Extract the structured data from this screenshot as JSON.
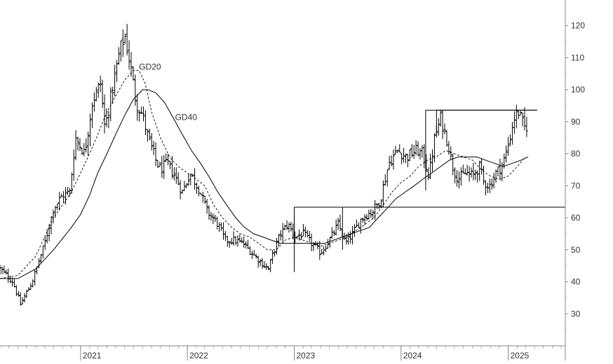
{
  "chart_data": {
    "type": "ohlc",
    "title": "",
    "xlabel": "",
    "ylabel": "",
    "ylim": [
      20,
      128
    ],
    "yticks": [
      30,
      40,
      50,
      60,
      70,
      80,
      90,
      100,
      110,
      120
    ],
    "xlim": [
      "2020-04-01",
      "2025-07-15"
    ],
    "xticks": [
      {
        "date": "2021-01-01",
        "label": "2021"
      },
      {
        "date": "2022-01-01",
        "label": "2022"
      },
      {
        "date": "2023-01-01",
        "label": "2023"
      },
      {
        "date": "2024-01-01",
        "label": "2024"
      },
      {
        "date": "2025-01-01",
        "label": "2025"
      }
    ],
    "grid": false,
    "y_axis_side": "right",
    "colors": {
      "bars": "#000000",
      "axis": "#888888",
      "text": "#333333"
    },
    "series_labels": [
      {
        "text": "GD20",
        "date": "2021-07-20",
        "value": 106.2
      },
      {
        "text": "GD40",
        "date": "2021-11-20",
        "value": 90.5
      }
    ],
    "price_path": [
      [
        "2020-04-01",
        44
      ],
      [
        "2020-05-15",
        40
      ],
      [
        "2020-06-10",
        33
      ],
      [
        "2020-07-20",
        40
      ],
      [
        "2020-09-01",
        52
      ],
      [
        "2020-10-01",
        63
      ],
      [
        "2020-11-01",
        67
      ],
      [
        "2020-11-25",
        68
      ],
      [
        "2020-12-15",
        85
      ],
      [
        "2021-01-15",
        80
      ],
      [
        "2021-02-10",
        96
      ],
      [
        "2021-03-10",
        102
      ],
      [
        "2021-03-25",
        88
      ],
      [
        "2021-04-20",
        100
      ],
      [
        "2021-05-15",
        112
      ],
      [
        "2021-06-01",
        117
      ],
      [
        "2021-06-20",
        108
      ],
      [
        "2021-07-10",
        96
      ],
      [
        "2021-08-01",
        92
      ],
      [
        "2021-08-20",
        85
      ],
      [
        "2021-09-15",
        78
      ],
      [
        "2021-10-01",
        75
      ],
      [
        "2021-10-25",
        77
      ],
      [
        "2021-11-20",
        73
      ],
      [
        "2021-12-15",
        68
      ],
      [
        "2022-01-10",
        74
      ],
      [
        "2022-02-10",
        69
      ],
      [
        "2022-03-10",
        62
      ],
      [
        "2022-04-15",
        58
      ],
      [
        "2022-05-10",
        53
      ],
      [
        "2022-06-10",
        53
      ],
      [
        "2022-07-10",
        52
      ],
      [
        "2022-08-10",
        49
      ],
      [
        "2022-09-10",
        46
      ],
      [
        "2022-10-05",
        44
      ],
      [
        "2022-10-25",
        50
      ],
      [
        "2022-11-15",
        55
      ],
      [
        "2022-12-10",
        58
      ],
      [
        "2023-01-05",
        54
      ],
      [
        "2023-02-01",
        55
      ],
      [
        "2023-03-01",
        52
      ],
      [
        "2023-04-01",
        49
      ],
      [
        "2023-05-01",
        53
      ],
      [
        "2023-06-01",
        58
      ],
      [
        "2023-06-25",
        52
      ],
      [
        "2023-07-20",
        55
      ],
      [
        "2023-08-20",
        60
      ],
      [
        "2023-09-25",
        62
      ],
      [
        "2023-10-20",
        65
      ],
      [
        "2023-11-20",
        77
      ],
      [
        "2023-12-20",
        81
      ],
      [
        "2024-01-20",
        79
      ],
      [
        "2024-02-20",
        81
      ],
      [
        "2024-03-15",
        80
      ],
      [
        "2024-04-05",
        73
      ],
      [
        "2024-04-25",
        85
      ],
      [
        "2024-05-15",
        91
      ],
      [
        "2024-06-10",
        83
      ],
      [
        "2024-06-25",
        76
      ],
      [
        "2024-07-15",
        72
      ],
      [
        "2024-08-10",
        74
      ],
      [
        "2024-09-01",
        73
      ],
      [
        "2024-09-25",
        76
      ],
      [
        "2024-10-10",
        71
      ],
      [
        "2024-10-30",
        70
      ],
      [
        "2024-11-20",
        74
      ],
      [
        "2024-12-15",
        77
      ],
      [
        "2025-01-05",
        84
      ],
      [
        "2025-01-20",
        91
      ],
      [
        "2025-02-05",
        93
      ],
      [
        "2025-02-25",
        88
      ],
      [
        "2025-03-10",
        89
      ]
    ],
    "gd20": [
      [
        "2020-04-01",
        41
      ],
      [
        "2020-06-01",
        42
      ],
      [
        "2020-08-01",
        48
      ],
      [
        "2020-10-01",
        60
      ],
      [
        "2020-12-01",
        68
      ],
      [
        "2021-01-01",
        74
      ],
      [
        "2021-02-01",
        80
      ],
      [
        "2021-03-01",
        86
      ],
      [
        "2021-04-01",
        93
      ],
      [
        "2021-05-01",
        98
      ],
      [
        "2021-06-01",
        103
      ],
      [
        "2021-07-01",
        106
      ],
      [
        "2021-07-20",
        106
      ],
      [
        "2021-08-10",
        102
      ],
      [
        "2021-09-01",
        93
      ],
      [
        "2021-10-01",
        85
      ],
      [
        "2021-11-01",
        79
      ],
      [
        "2021-12-01",
        76
      ],
      [
        "2022-01-01",
        74
      ],
      [
        "2022-02-01",
        72
      ],
      [
        "2022-03-01",
        70
      ],
      [
        "2022-04-01",
        64
      ],
      [
        "2022-05-01",
        60
      ],
      [
        "2022-06-01",
        57
      ],
      [
        "2022-07-01",
        55
      ],
      [
        "2022-08-01",
        54
      ],
      [
        "2022-09-01",
        52
      ],
      [
        "2022-10-01",
        50
      ],
      [
        "2022-11-01",
        50
      ],
      [
        "2022-12-01",
        53
      ],
      [
        "2023-01-01",
        54
      ],
      [
        "2023-02-01",
        53
      ],
      [
        "2023-03-01",
        52
      ],
      [
        "2023-04-01",
        51
      ],
      [
        "2023-05-01",
        52
      ],
      [
        "2023-06-01",
        53
      ],
      [
        "2023-07-01",
        54
      ],
      [
        "2023-08-01",
        56
      ],
      [
        "2023-09-01",
        58
      ],
      [
        "2023-10-01",
        60
      ],
      [
        "2023-11-01",
        64
      ],
      [
        "2023-12-01",
        68
      ],
      [
        "2024-01-01",
        71
      ],
      [
        "2024-02-01",
        73
      ],
      [
        "2024-03-01",
        76
      ],
      [
        "2024-04-01",
        78
      ],
      [
        "2024-05-01",
        79
      ],
      [
        "2024-06-01",
        81
      ],
      [
        "2024-07-01",
        80
      ],
      [
        "2024-08-01",
        79
      ],
      [
        "2024-09-01",
        78
      ],
      [
        "2024-10-01",
        75
      ],
      [
        "2024-11-01",
        73
      ],
      [
        "2024-12-01",
        72
      ],
      [
        "2025-01-01",
        73
      ],
      [
        "2025-02-01",
        76
      ],
      [
        "2025-03-01",
        79
      ]
    ],
    "gd40": [
      [
        "2020-04-01",
        41
      ],
      [
        "2020-06-01",
        41
      ],
      [
        "2020-08-01",
        44
      ],
      [
        "2020-10-01",
        50
      ],
      [
        "2020-12-01",
        57
      ],
      [
        "2021-01-01",
        61
      ],
      [
        "2021-02-01",
        67
      ],
      [
        "2021-03-01",
        74
      ],
      [
        "2021-04-01",
        80
      ],
      [
        "2021-05-01",
        86
      ],
      [
        "2021-06-01",
        92
      ],
      [
        "2021-07-01",
        97
      ],
      [
        "2021-08-01",
        100
      ],
      [
        "2021-08-20",
        100
      ],
      [
        "2021-09-15",
        99
      ],
      [
        "2021-10-15",
        96
      ],
      [
        "2021-11-15",
        91
      ],
      [
        "2021-12-15",
        86
      ],
      [
        "2022-01-15",
        81
      ],
      [
        "2022-02-15",
        77
      ],
      [
        "2022-03-15",
        73
      ],
      [
        "2022-04-15",
        68
      ],
      [
        "2022-05-15",
        64
      ],
      [
        "2022-06-15",
        60
      ],
      [
        "2022-07-15",
        57
      ],
      [
        "2022-08-15",
        55
      ],
      [
        "2022-09-15",
        54
      ],
      [
        "2022-10-15",
        53
      ],
      [
        "2022-11-15",
        52
      ],
      [
        "2022-12-15",
        52
      ],
      [
        "2023-01-15",
        52
      ],
      [
        "2023-02-15",
        52
      ],
      [
        "2023-03-15",
        52
      ],
      [
        "2023-04-15",
        52
      ],
      [
        "2023-05-15",
        53
      ],
      [
        "2023-06-15",
        54
      ],
      [
        "2023-07-15",
        55
      ],
      [
        "2023-08-15",
        56
      ],
      [
        "2023-09-15",
        57
      ],
      [
        "2023-10-15",
        60
      ],
      [
        "2023-11-15",
        63
      ],
      [
        "2023-12-15",
        66
      ],
      [
        "2024-01-15",
        68
      ],
      [
        "2024-02-15",
        70
      ],
      [
        "2024-03-15",
        72
      ],
      [
        "2024-04-15",
        74
      ],
      [
        "2024-05-15",
        76
      ],
      [
        "2024-06-15",
        78
      ],
      [
        "2024-07-15",
        79
      ],
      [
        "2024-08-15",
        79
      ],
      [
        "2024-09-15",
        79
      ],
      [
        "2024-10-15",
        78
      ],
      [
        "2024-11-15",
        77
      ],
      [
        "2024-12-15",
        76
      ],
      [
        "2025-01-15",
        77
      ],
      [
        "2025-02-15",
        78
      ],
      [
        "2025-03-10",
        79
      ]
    ],
    "rectangles": [
      {
        "start": "2023-01-01",
        "end": "2025-07-15",
        "top": 63.3,
        "bottom": 43
      },
      {
        "start": "2023-06-15",
        "end": "2025-07-15",
        "top": 63.3,
        "bottom": 50
      },
      {
        "start": "2024-03-25",
        "end": "2025-04-10",
        "top": 93.6,
        "bottom": 68.5
      },
      {
        "start": "2024-05-01",
        "end": "2025-04-10",
        "top": 93.6,
        "bottom": 85
      }
    ]
  }
}
